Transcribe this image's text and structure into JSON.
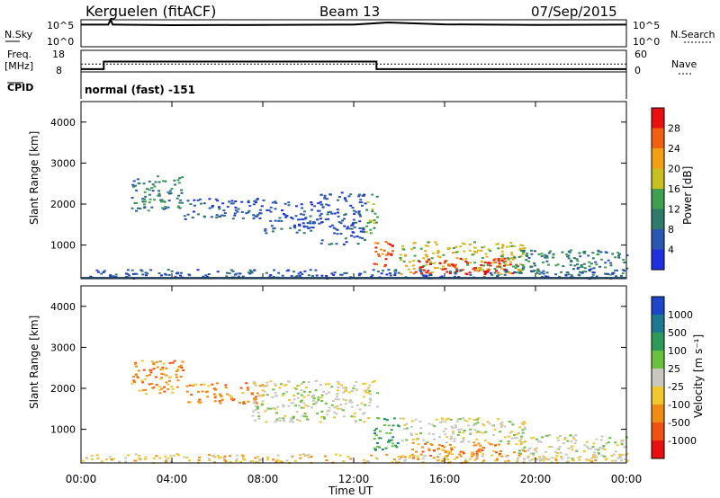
{
  "header": {
    "station": "Kerguelen (fitACF)",
    "beam": "Beam 13",
    "date": "07/Sep/2015"
  },
  "top_panel": {
    "nsky_label": "N.Sky",
    "nsky_ticks": [
      "10^5",
      "10^0"
    ],
    "nsearch_label": "N.Search",
    "nsearch_ticks": [
      "10^5",
      "10^0"
    ],
    "freq_label": "Freq.",
    "freq_unit": "[MHz]",
    "freq_ticks": [
      "18",
      "8"
    ],
    "nave_label": "Nave",
    "nave_ticks": [
      "60",
      "0"
    ],
    "cpid_label": "CPID",
    "cpid_value": "normal (fast) -151"
  },
  "chart_data": [
    {
      "type": "heatmap",
      "name": "power",
      "ylabel": "Slant Range [km]",
      "yticks": [
        "4000",
        "3000",
        "2000",
        "1000"
      ],
      "ytick_values": [
        4000,
        3000,
        2000,
        1000
      ],
      "ylim": [
        180,
        4500
      ],
      "xlim_hours": [
        0,
        24
      ],
      "colorbar_label": "Power [dB]",
      "colorbar_ticks": [
        "28",
        "24",
        "20",
        "16",
        "12",
        "8",
        "4"
      ],
      "colorbar_tick_values": [
        28,
        24,
        20,
        16,
        12,
        8,
        4
      ],
      "colorbar_range": [
        0,
        32
      ],
      "colors": [
        "#2030e0",
        "#2a58b0",
        "#2f7a6a",
        "#3ea050",
        "#c8c020",
        "#f0a010",
        "#f06010",
        "#e81010"
      ],
      "regions": [
        {
          "x": [
            2.2,
            4.5
          ],
          "y": [
            1850,
            2700
          ],
          "level": 2
        },
        {
          "x": [
            4.5,
            8.0
          ],
          "y": [
            1650,
            2150
          ],
          "level": 1
        },
        {
          "x": [
            8.0,
            10.5
          ],
          "y": [
            1300,
            2100
          ],
          "level": 1
        },
        {
          "x": [
            10.5,
            12.5
          ],
          "y": [
            1000,
            2300
          ],
          "level": 1
        },
        {
          "x": [
            12.5,
            13.0
          ],
          "y": [
            1300,
            2300
          ],
          "level": 3
        },
        {
          "x": [
            12.8,
            13.8
          ],
          "y": [
            500,
            1100
          ],
          "level": 6
        },
        {
          "x": [
            14.0,
            19.5
          ],
          "y": [
            300,
            1100
          ],
          "level": 4
        },
        {
          "x": [
            14.5,
            19.0
          ],
          "y": [
            300,
            700
          ],
          "level": 7
        },
        {
          "x": [
            19.0,
            24.0
          ],
          "y": [
            250,
            900
          ],
          "level": 2
        },
        {
          "x": [
            0.0,
            24.0
          ],
          "y": [
            200,
            420
          ],
          "level": 1
        }
      ]
    },
    {
      "type": "heatmap",
      "name": "velocity",
      "ylabel": "Slant Range [km]",
      "yticks": [
        "4000",
        "3000",
        "2000",
        "1000"
      ],
      "ytick_values": [
        4000,
        3000,
        2000,
        1000
      ],
      "ylim": [
        180,
        4500
      ],
      "xlim_hours": [
        0,
        24
      ],
      "colorbar_label": "Velocity [m s⁻¹]",
      "colorbar_ticks": [
        "1000",
        "500",
        "100",
        "25",
        "-25",
        "-100",
        "-500",
        "-1000"
      ],
      "colors": [
        "#1e46c8",
        "#1e7890",
        "#2e9a5a",
        "#6cc040",
        "#c8c8c0",
        "#f0c830",
        "#f08c14",
        "#f05010",
        "#e81010"
      ],
      "regions": [
        {
          "x": [
            2.2,
            4.5
          ],
          "y": [
            1850,
            2700
          ],
          "level": 6
        },
        {
          "x": [
            4.5,
            8.0
          ],
          "y": [
            1650,
            2150
          ],
          "level": 6
        },
        {
          "x": [
            7.5,
            13.0
          ],
          "y": [
            1200,
            2200
          ],
          "level": 4
        },
        {
          "x": [
            12.8,
            14.0
          ],
          "y": [
            500,
            1300
          ],
          "level": 2
        },
        {
          "x": [
            14.0,
            19.5
          ],
          "y": [
            700,
            1300
          ],
          "level": 4
        },
        {
          "x": [
            14.5,
            19.5
          ],
          "y": [
            300,
            700
          ],
          "level": 6
        },
        {
          "x": [
            19.0,
            24.0
          ],
          "y": [
            250,
            900
          ],
          "level": 4
        },
        {
          "x": [
            0.0,
            24.0
          ],
          "y": [
            200,
            420
          ],
          "level": 5
        }
      ]
    }
  ],
  "xaxis": {
    "label": "Time UT",
    "ticks": [
      "00:00",
      "04:00",
      "08:00",
      "12:00",
      "16:00",
      "20:00",
      "00:00"
    ],
    "tick_hours": [
      0,
      4,
      8,
      12,
      16,
      20,
      24
    ]
  },
  "series": {
    "nsky": [
      [
        0,
        0.82
      ],
      [
        1.2,
        0.82
      ],
      [
        1.3,
        1.0
      ],
      [
        1.4,
        0.82
      ],
      [
        4,
        0.8
      ],
      [
        8,
        0.81
      ],
      [
        12,
        0.82
      ],
      [
        13.5,
        0.9
      ],
      [
        16,
        0.83
      ],
      [
        20,
        0.81
      ],
      [
        24,
        0.82
      ]
    ],
    "freq_mhz": [
      [
        0,
        9.3
      ],
      [
        1.0,
        9.3
      ],
      [
        1.0,
        12.8
      ],
      [
        13.0,
        12.8
      ],
      [
        13.0,
        9.3
      ],
      [
        24,
        9.3
      ]
    ],
    "nave": [
      [
        0,
        22
      ],
      [
        24,
        22
      ]
    ]
  }
}
